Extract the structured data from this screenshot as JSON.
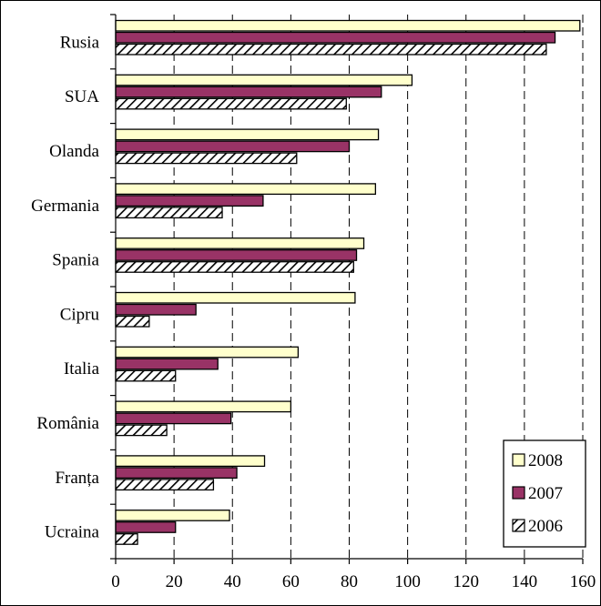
{
  "chart_data": {
    "type": "bar",
    "orientation": "horizontal",
    "categories": [
      "Rusia",
      "SUA",
      "Olanda",
      "Germania",
      "Spania",
      "Cipru",
      "Italia",
      "România",
      "Franța",
      "Ucraina"
    ],
    "series": [
      {
        "name": "2008",
        "values": [
          159,
          101.5,
          90,
          89,
          85,
          82,
          62.5,
          60,
          51,
          39
        ],
        "color": "#ffffcc",
        "pattern": "solid"
      },
      {
        "name": "2007",
        "values": [
          150.5,
          91,
          80,
          50.5,
          82.5,
          27.5,
          35,
          39.5,
          41.5,
          20.5
        ],
        "color": "#993366",
        "pattern": "solid"
      },
      {
        "name": "2006",
        "values": [
          147.5,
          79,
          62,
          36.5,
          81.5,
          11.5,
          20.5,
          17.5,
          33.5,
          7.5
        ],
        "color": "#ffffff",
        "pattern": "diagonal-hatch"
      }
    ],
    "x_ticks": [
      "0",
      "20",
      "40",
      "60",
      "80",
      "100",
      "120",
      "140",
      "160"
    ],
    "xlim": [
      0,
      160
    ],
    "grid": "vertical-dashed",
    "legend_position": "bottom-right"
  }
}
